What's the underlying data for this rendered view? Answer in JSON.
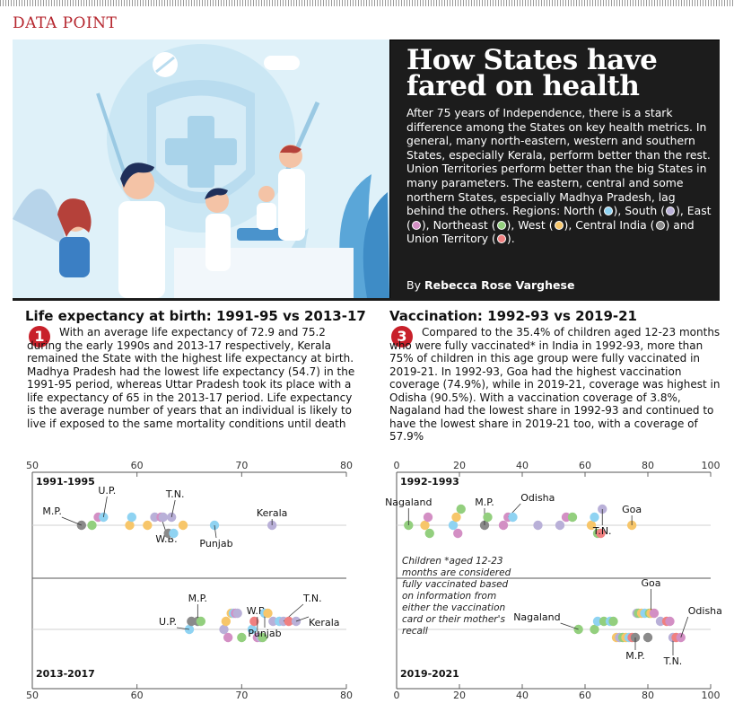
{
  "section_label": "DATA POINT",
  "header": {
    "title": "How States have fared on health",
    "body": "After 75 years of Independence, there is a stark difference among the States on key health metrics. In general, many north-eastern, western and southern States, especially Kerala, perform better than the rest. Union Territories perform better than the big States in many parameters. The eastern, central and some northern States, especially Madhya Pradesh, lag behind the others.",
    "regions_intro": "Regions:",
    "regions": [
      {
        "name": "North",
        "color": "#8fd3f2"
      },
      {
        "name": "South",
        "color": "#b9b0d8"
      },
      {
        "name": "East",
        "color": "#d38fc4"
      },
      {
        "name": "Northeast",
        "color": "#93cf7e"
      },
      {
        "name": "West",
        "color": "#f7c66a"
      },
      {
        "name": "Central India",
        "color": "#8a8a8a"
      },
      {
        "name": "Union Territory",
        "color": "#f08080"
      }
    ],
    "byline_prefix": "By",
    "byline_name": "Rebecca Rose Varghese"
  },
  "panel1": {
    "title": "Life expectancy at birth: 1991-95 vs 2013-17",
    "number": "1",
    "text": "With an average life expectancy of 72.9 and 75.2 during the early 1990s and 2013-17 respectively, Kerala remained the State with the highest life expectancy at birth. Madhya Pradesh had the lowest life expectancy (54.7) in the 1991-95 period, whereas Uttar Pradesh took its place with a life expectancy of 65 in the 2013-17 period. Life expectancy is the average number of years that an individual is likely to live if exposed to the same mortality conditions until death"
  },
  "panel3": {
    "title": "Vaccination: 1992-93 vs 2019-21",
    "number": "3",
    "text": "Compared to the 35.4% of children aged 12-23 months who were fully vaccinated* in India in 1992-93, more than 75% of children in this age group were fully vaccinated in 2019-21. In 1992-93, Goa had the highest vaccination coverage (74.9%), while in 2019-21, coverage was highest in Odisha (90.5%). With a vaccination coverage of 3.8%, Nagaland had the lowest share in 1992-93 and continued to have the lowest share in 2019-21 too, with a coverage of 57.9%",
    "footnote": "Children *aged 12-23 months are considered fully vaccinated based on information from either the vaccination card or their mother's recall"
  },
  "chart_data": [
    {
      "type": "scatter",
      "title": "Life expectancy at birth: 1991-95 vs 2013-17",
      "xlim": [
        50,
        80
      ],
      "xticks": [
        50,
        60,
        70,
        80
      ],
      "rows": [
        {
          "label": "1991-1995",
          "points": [
            {
              "x": 54.7,
              "region": "Central India",
              "label": "M.P."
            },
            {
              "x": 55.7,
              "region": "Northeast"
            },
            {
              "x": 56.3,
              "region": "East"
            },
            {
              "x": 56.8,
              "region": "North",
              "label": "U.P."
            },
            {
              "x": 59.3,
              "region": "West"
            },
            {
              "x": 59.5,
              "region": "North"
            },
            {
              "x": 61.0,
              "region": "West"
            },
            {
              "x": 61.7,
              "region": "South"
            },
            {
              "x": 62.3,
              "region": "East",
              "label": "W.B."
            },
            {
              "x": 62.5,
              "region": "South"
            },
            {
              "x": 63.0,
              "region": "Central India"
            },
            {
              "x": 63.3,
              "region": "South",
              "label": "T.N."
            },
            {
              "x": 63.5,
              "region": "North"
            },
            {
              "x": 64.4,
              "region": "West"
            },
            {
              "x": 67.4,
              "region": "North",
              "label": "Punjab"
            },
            {
              "x": 72.9,
              "region": "South",
              "label": "Kerala"
            }
          ]
        },
        {
          "label": "2013-2017",
          "points": [
            {
              "x": 65.0,
              "region": "North",
              "label": "U.P."
            },
            {
              "x": 65.2,
              "region": "Central India"
            },
            {
              "x": 65.8,
              "region": "Central India",
              "label": "M.P."
            },
            {
              "x": 66.1,
              "region": "Northeast"
            },
            {
              "x": 68.3,
              "region": "South"
            },
            {
              "x": 68.5,
              "region": "West"
            },
            {
              "x": 68.7,
              "region": "East"
            },
            {
              "x": 69.0,
              "region": "West"
            },
            {
              "x": 69.2,
              "region": "North"
            },
            {
              "x": 69.4,
              "region": "East"
            },
            {
              "x": 69.6,
              "region": "South"
            },
            {
              "x": 70.0,
              "region": "Northeast"
            },
            {
              "x": 71.0,
              "region": "North"
            },
            {
              "x": 71.2,
              "region": "Union Territory"
            },
            {
              "x": 71.5,
              "region": "East",
              "label": "W.B."
            },
            {
              "x": 71.8,
              "region": "South"
            },
            {
              "x": 72.0,
              "region": "Northeast"
            },
            {
              "x": 72.2,
              "region": "North",
              "label": "Punjab"
            },
            {
              "x": 72.5,
              "region": "West"
            },
            {
              "x": 73.0,
              "region": "South"
            },
            {
              "x": 73.6,
              "region": "North"
            },
            {
              "x": 74.0,
              "region": "South",
              "label": "T.N."
            },
            {
              "x": 74.5,
              "region": "Union Territory"
            },
            {
              "x": 75.2,
              "region": "South",
              "label": "Kerala"
            }
          ]
        }
      ]
    },
    {
      "type": "scatter",
      "title": "Vaccination: 1992-93 vs 2019-21",
      "xlim": [
        0,
        100
      ],
      "xticks": [
        0,
        20,
        40,
        60,
        80,
        100
      ],
      "rows": [
        {
          "label": "1992-1993",
          "points": [
            {
              "x": 3.8,
              "region": "Northeast",
              "label": "Nagaland"
            },
            {
              "x": 9.0,
              "region": "West"
            },
            {
              "x": 10.0,
              "region": "East"
            },
            {
              "x": 10.5,
              "region": "Northeast"
            },
            {
              "x": 18.0,
              "region": "North"
            },
            {
              "x": 19.0,
              "region": "West"
            },
            {
              "x": 19.5,
              "region": "East"
            },
            {
              "x": 20.5,
              "region": "Northeast"
            },
            {
              "x": 28.0,
              "region": "Central India",
              "label": "M.P."
            },
            {
              "x": 29.0,
              "region": "Northeast"
            },
            {
              "x": 34.0,
              "region": "East"
            },
            {
              "x": 35.5,
              "region": "East",
              "label": "Odisha"
            },
            {
              "x": 37.0,
              "region": "North"
            },
            {
              "x": 45.0,
              "region": "South"
            },
            {
              "x": 52.0,
              "region": "South"
            },
            {
              "x": 54.0,
              "region": "East"
            },
            {
              "x": 56.0,
              "region": "Northeast"
            },
            {
              "x": 62.0,
              "region": "West"
            },
            {
              "x": 63.0,
              "region": "North"
            },
            {
              "x": 64.0,
              "region": "Northeast"
            },
            {
              "x": 65.0,
              "region": "Union Territory"
            },
            {
              "x": 65.5,
              "region": "South",
              "label": "T.N."
            },
            {
              "x": 74.9,
              "region": "West",
              "label": "Goa"
            }
          ]
        },
        {
          "label": "2019-2021",
          "points": [
            {
              "x": 57.9,
              "region": "Northeast",
              "label": "Nagaland"
            },
            {
              "x": 63.0,
              "region": "Northeast"
            },
            {
              "x": 64.0,
              "region": "North"
            },
            {
              "x": 66.0,
              "region": "Northeast"
            },
            {
              "x": 68.0,
              "region": "North"
            },
            {
              "x": 69.0,
              "region": "Northeast"
            },
            {
              "x": 70.0,
              "region": "West"
            },
            {
              "x": 71.0,
              "region": "South"
            },
            {
              "x": 72.0,
              "region": "Northeast"
            },
            {
              "x": 73.0,
              "region": "West"
            },
            {
              "x": 74.0,
              "region": "North"
            },
            {
              "x": 75.0,
              "region": "Union Territory"
            },
            {
              "x": 76.0,
              "region": "Central India",
              "label": "M.P."
            },
            {
              "x": 76.5,
              "region": "South"
            },
            {
              "x": 77.0,
              "region": "Northeast"
            },
            {
              "x": 78.0,
              "region": "West"
            },
            {
              "x": 79.0,
              "region": "North"
            },
            {
              "x": 80.0,
              "region": "Central India"
            },
            {
              "x": 80.5,
              "region": "Northeast"
            },
            {
              "x": 81.0,
              "region": "West",
              "label": "Goa"
            },
            {
              "x": 82.0,
              "region": "East"
            },
            {
              "x": 84.0,
              "region": "South"
            },
            {
              "x": 86.0,
              "region": "Union Territory"
            },
            {
              "x": 87.0,
              "region": "East"
            },
            {
              "x": 88.0,
              "region": "South",
              "label": "T.N."
            },
            {
              "x": 89.0,
              "region": "Union Territory"
            },
            {
              "x": 90.5,
              "region": "East",
              "label": "Odisha"
            }
          ]
        }
      ]
    }
  ]
}
